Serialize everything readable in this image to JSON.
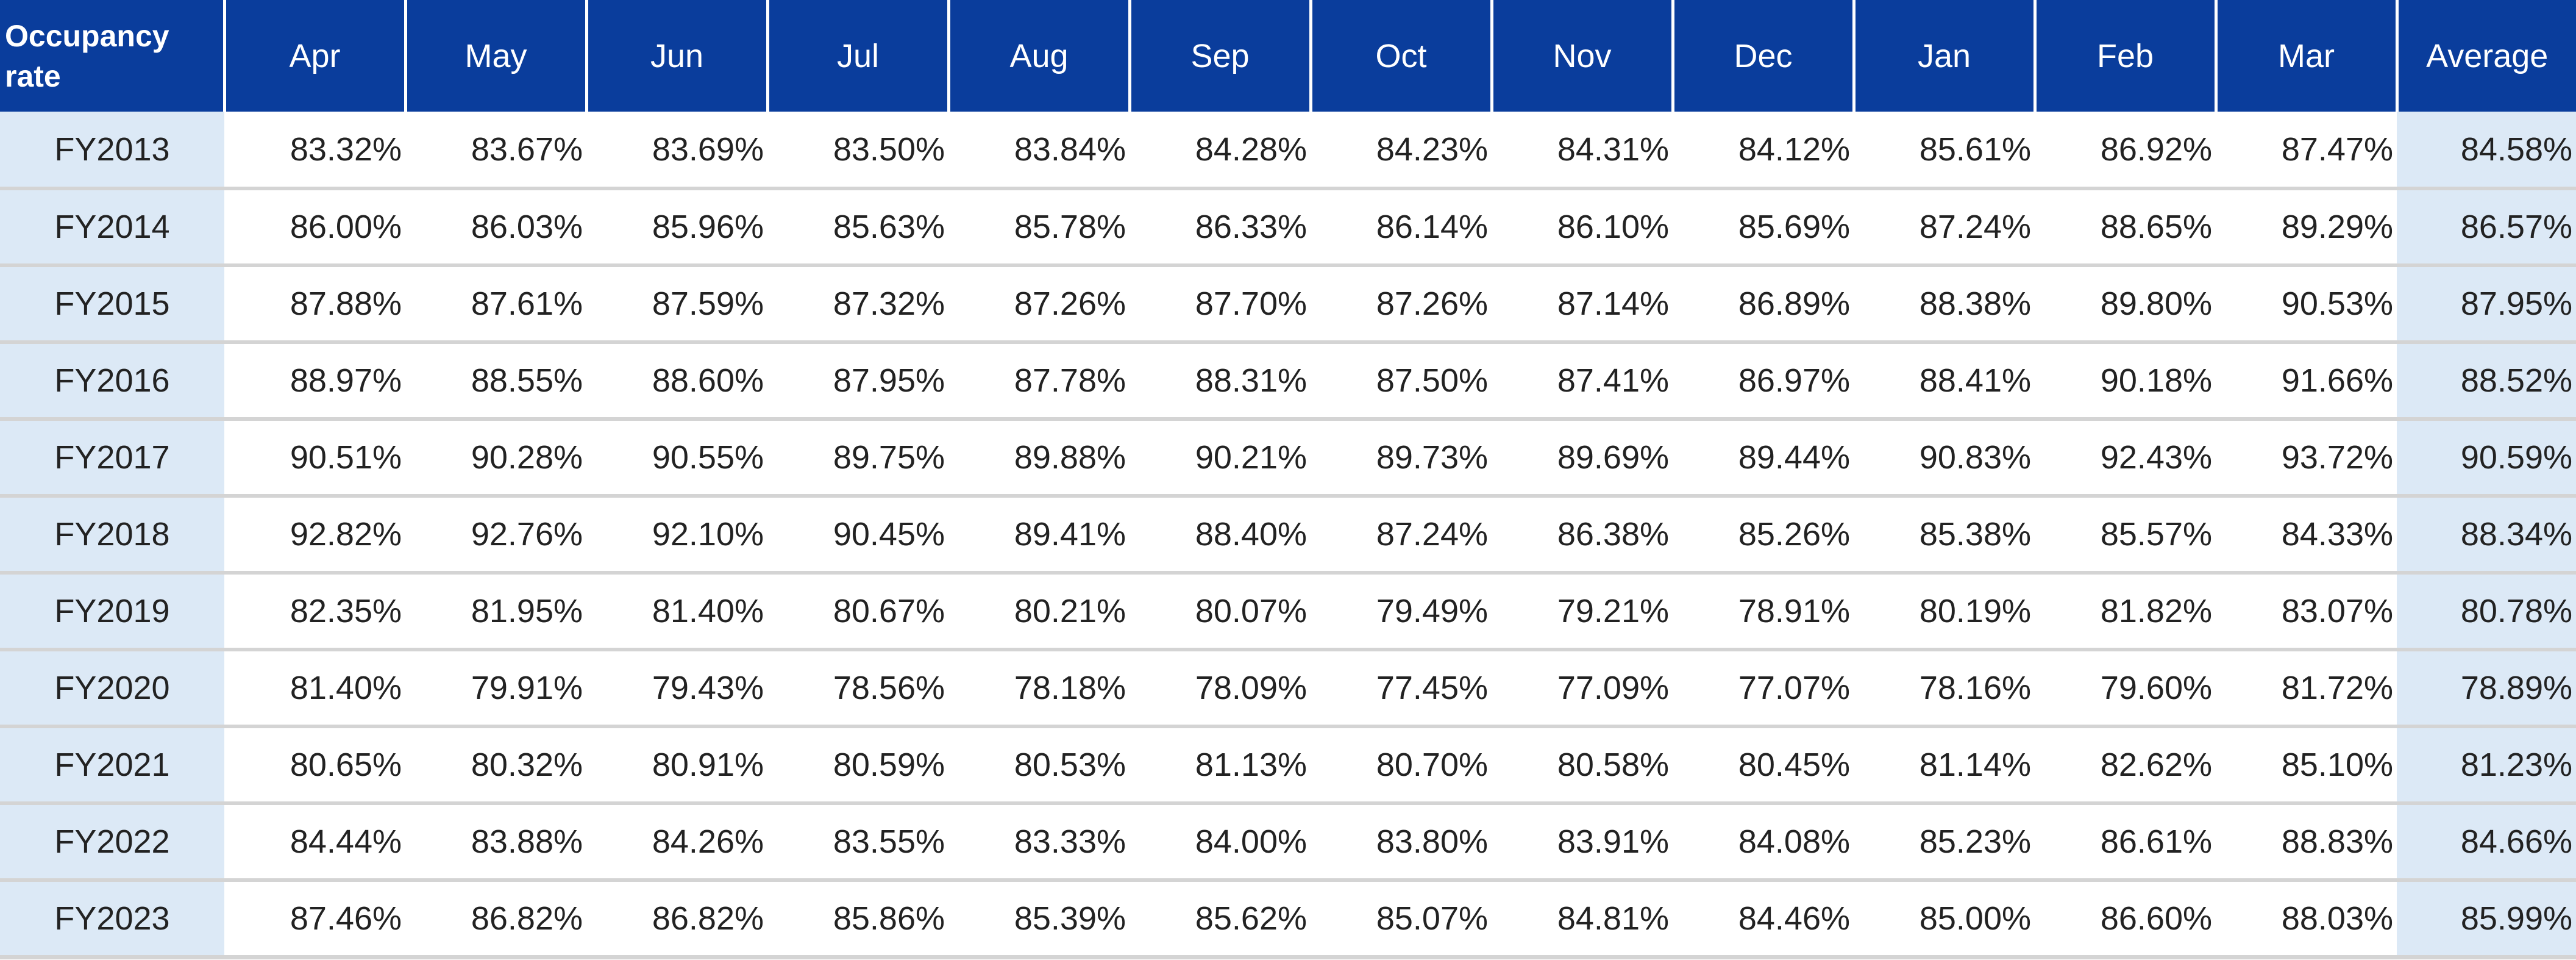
{
  "table": {
    "corner_label": "Occupancy rate",
    "months": [
      "Apr",
      "May",
      "Jun",
      "Jul",
      "Aug",
      "Sep",
      "Oct",
      "Nov",
      "Dec",
      "Jan",
      "Feb",
      "Mar"
    ],
    "average_label": "Average",
    "rows": [
      {
        "year": "FY2013",
        "values": [
          "83.32%",
          "83.67%",
          "83.69%",
          "83.50%",
          "83.84%",
          "84.28%",
          "84.23%",
          "84.31%",
          "84.12%",
          "85.61%",
          "86.92%",
          "87.47%"
        ],
        "average": "84.58%"
      },
      {
        "year": "FY2014",
        "values": [
          "86.00%",
          "86.03%",
          "85.96%",
          "85.63%",
          "85.78%",
          "86.33%",
          "86.14%",
          "86.10%",
          "85.69%",
          "87.24%",
          "88.65%",
          "89.29%"
        ],
        "average": "86.57%"
      },
      {
        "year": "FY2015",
        "values": [
          "87.88%",
          "87.61%",
          "87.59%",
          "87.32%",
          "87.26%",
          "87.70%",
          "87.26%",
          "87.14%",
          "86.89%",
          "88.38%",
          "89.80%",
          "90.53%"
        ],
        "average": "87.95%"
      },
      {
        "year": "FY2016",
        "values": [
          "88.97%",
          "88.55%",
          "88.60%",
          "87.95%",
          "87.78%",
          "88.31%",
          "87.50%",
          "87.41%",
          "86.97%",
          "88.41%",
          "90.18%",
          "91.66%"
        ],
        "average": "88.52%"
      },
      {
        "year": "FY2017",
        "values": [
          "90.51%",
          "90.28%",
          "90.55%",
          "89.75%",
          "89.88%",
          "90.21%",
          "89.73%",
          "89.69%",
          "89.44%",
          "90.83%",
          "92.43%",
          "93.72%"
        ],
        "average": "90.59%"
      },
      {
        "year": "FY2018",
        "values": [
          "92.82%",
          "92.76%",
          "92.10%",
          "90.45%",
          "89.41%",
          "88.40%",
          "87.24%",
          "86.38%",
          "85.26%",
          "85.38%",
          "85.57%",
          "84.33%"
        ],
        "average": "88.34%"
      },
      {
        "year": "FY2019",
        "values": [
          "82.35%",
          "81.95%",
          "81.40%",
          "80.67%",
          "80.21%",
          "80.07%",
          "79.49%",
          "79.21%",
          "78.91%",
          "80.19%",
          "81.82%",
          "83.07%"
        ],
        "average": "80.78%"
      },
      {
        "year": "FY2020",
        "values": [
          "81.40%",
          "79.91%",
          "79.43%",
          "78.56%",
          "78.18%",
          "78.09%",
          "77.45%",
          "77.09%",
          "77.07%",
          "78.16%",
          "79.60%",
          "81.72%"
        ],
        "average": "78.89%"
      },
      {
        "year": "FY2021",
        "values": [
          "80.65%",
          "80.32%",
          "80.91%",
          "80.59%",
          "80.53%",
          "81.13%",
          "80.70%",
          "80.58%",
          "80.45%",
          "81.14%",
          "82.62%",
          "85.10%"
        ],
        "average": "81.23%"
      },
      {
        "year": "FY2022",
        "values": [
          "84.44%",
          "83.88%",
          "84.26%",
          "83.55%",
          "83.33%",
          "84.00%",
          "83.80%",
          "83.91%",
          "84.08%",
          "85.23%",
          "86.61%",
          "88.83%"
        ],
        "average": "84.66%"
      },
      {
        "year": "FY2023",
        "values": [
          "87.46%",
          "86.82%",
          "86.82%",
          "85.86%",
          "85.39%",
          "85.62%",
          "85.07%",
          "84.81%",
          "84.46%",
          "85.00%",
          "86.60%",
          "88.03%"
        ],
        "average": "85.99%"
      }
    ]
  },
  "colors": {
    "header_background": "#0a3d9c",
    "header_text": "#ffffff",
    "label_column_background": "#dce9f6",
    "row_divider": "#d4d4d4"
  }
}
